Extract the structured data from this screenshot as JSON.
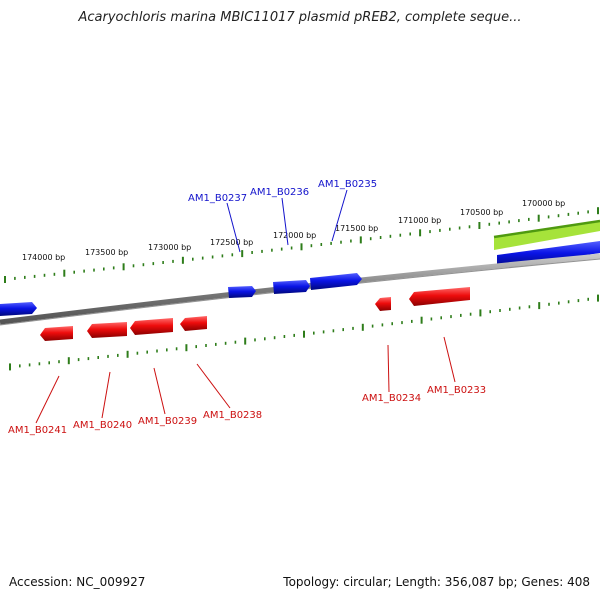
{
  "title": "Acaryochloris marina MBIC11017 plasmid pREB2, complete seque...",
  "footer": {
    "accession": "Accession: NC_009927",
    "summary": "Topology: circular; Length: 356,087 bp; Genes: 408"
  },
  "colors": {
    "forward_gene": "#0a14e6",
    "reverse_gene": "#ee0c0c",
    "backbone": "#8a8a8a",
    "ticks": "#2e7d1a",
    "highlight": "#8fd62a",
    "forward_label": "#1414cc",
    "reverse_label": "#cc1010"
  },
  "axis_ticks": [
    "174000 bp",
    "173500 bp",
    "173000 bp",
    "172500 bp",
    "172000 bp",
    "171500 bp",
    "171000 bp",
    "170500 bp",
    "170000 bp"
  ],
  "gene_labels": {
    "forward": [
      "AM1_B0237",
      "AM1_B0236",
      "AM1_B0235"
    ],
    "reverse": [
      "AM1_B0241",
      "AM1_B0240",
      "AM1_B0239",
      "AM1_B0238",
      "AM1_B0234",
      "AM1_B0233"
    ]
  }
}
